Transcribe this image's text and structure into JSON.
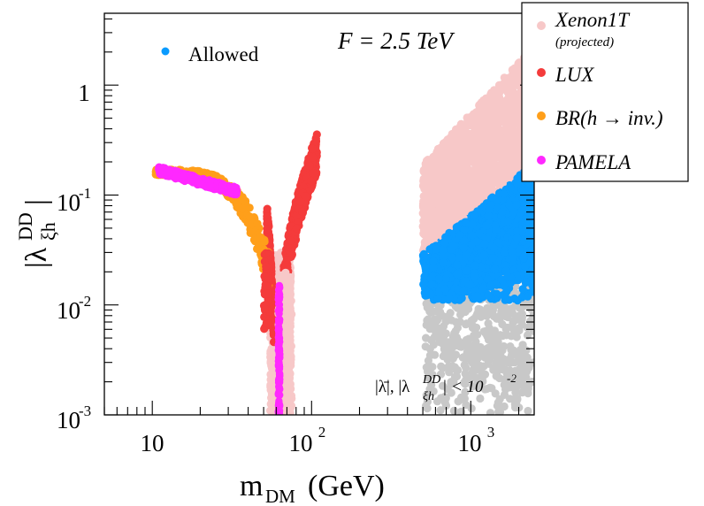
{
  "chart_data": {
    "type": "scatter",
    "x_scale": "log",
    "y_scale": "log",
    "xlim": [
      5,
      2500
    ],
    "ylim": [
      0.001,
      4.5
    ],
    "xlabel": {
      "main": "m",
      "sub": "DM",
      "unit": " (GeV)"
    },
    "ylabel": {
      "main": "|λ",
      "sup": "DD",
      "sub": "ξh",
      "close": "|"
    },
    "x_ticks": [
      {
        "value": 10,
        "label": "10"
      },
      {
        "value": 100,
        "base": "10",
        "exp": "2"
      },
      {
        "value": 1000,
        "base": "10",
        "exp": "3"
      }
    ],
    "y_ticks": [
      {
        "value": 0.001,
        "base": "10",
        "exp": "-3"
      },
      {
        "value": 0.01,
        "base": "10",
        "exp": "-2"
      },
      {
        "value": 0.1,
        "base": "10",
        "exp": "-1"
      },
      {
        "value": 1,
        "label": "1"
      }
    ],
    "annotation_title": "F = 2.5 TeV",
    "annotation_cut": {
      "pre": "|λ̄|, |λ",
      "sup": "DD",
      "sub": "ξh",
      "post": "| < 10",
      "exp": "-2"
    },
    "inline_legend": {
      "label": "Allowed",
      "color": "#0a9bff"
    },
    "legend": [
      {
        "label": "Xenon1T",
        "sub": "(projected)",
        "color": "#f7c8c8"
      },
      {
        "label": "LUX",
        "color": "#f43b3b"
      },
      {
        "label": "BR(h → inv.)",
        "color": "#ff9f1a"
      },
      {
        "label": "PAMELA",
        "color": "#ff28ff"
      }
    ],
    "series": [
      {
        "name": "Excluded by perturbativity cut (grey)",
        "color": "#c8c8c8",
        "x_range": [
          500,
          2500
        ],
        "y_range": [
          0.001,
          0.02
        ]
      },
      {
        "name": "Xenon1T (projected)",
        "color": "#f7c8c8",
        "x_range": [
          480,
          2500
        ],
        "y_at_xmin": [
          0.015,
          0.2
        ],
        "slope": 1.3,
        "x_range_resonance": [
          52,
          78
        ],
        "y_range_resonance": [
          0.001,
          0.03
        ]
      },
      {
        "name": "LUX",
        "color": "#f43b3b",
        "x_range": [
          600,
          2500
        ],
        "upper_band_slope": 1.6,
        "resonance_left_x": [
          53,
          57
        ],
        "resonance_right_x": [
          65,
          110
        ],
        "y_max_right": 0.24
      },
      {
        "name": "BR(h → inv.)",
        "color": "#ff9f1a",
        "x_range": [
          10,
          55
        ],
        "y_range": [
          0.02,
          0.17
        ]
      },
      {
        "name": "PAMELA",
        "color": "#ff28ff",
        "x_range": [
          11,
          35
        ],
        "y_range": [
          0.1,
          0.17
        ],
        "resonance_x": 62.5,
        "resonance_y": [
          0.001,
          0.015
        ]
      },
      {
        "name": "Allowed",
        "color": "#0a9bff",
        "x_range": [
          520,
          2500
        ],
        "y_range": [
          0.01,
          0.3
        ]
      }
    ]
  }
}
